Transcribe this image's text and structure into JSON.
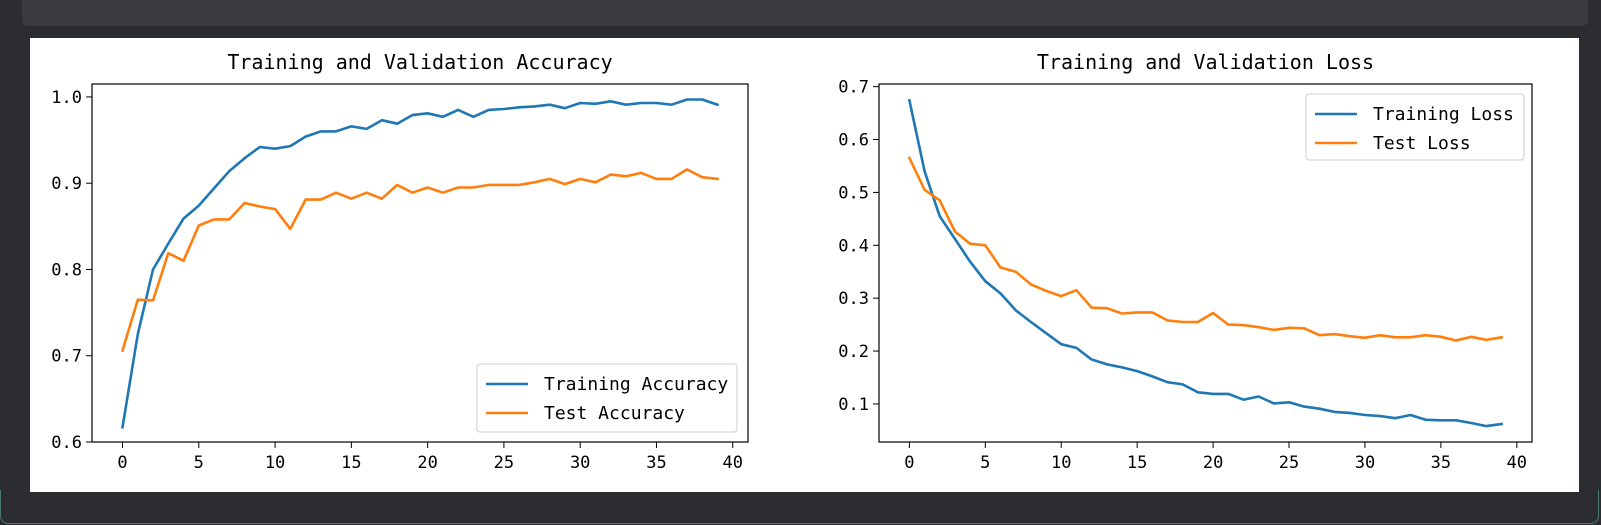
{
  "chart_data": [
    {
      "type": "line",
      "title": "Training and Validation Accuracy",
      "xlabel": "",
      "ylabel": "",
      "xlim": [
        -2,
        41
      ],
      "ylim": [
        0.6,
        1.015
      ],
      "xticks": [
        0,
        5,
        10,
        15,
        20,
        25,
        30,
        35,
        40
      ],
      "yticks": [
        0.6,
        0.7,
        0.8,
        0.9,
        1.0
      ],
      "ytick_labels": [
        "0.6",
        "0.7",
        "0.8",
        "0.9",
        "1.0"
      ],
      "legend_position": "lower right",
      "grid": false,
      "x": [
        0,
        1,
        2,
        3,
        4,
        5,
        6,
        7,
        8,
        9,
        10,
        11,
        12,
        13,
        14,
        15,
        16,
        17,
        18,
        19,
        20,
        21,
        22,
        23,
        24,
        25,
        26,
        27,
        28,
        29,
        30,
        31,
        32,
        33,
        34,
        35,
        36,
        37,
        38,
        39
      ],
      "series": [
        {
          "name": "Training Accuracy",
          "color": "#1f77b4",
          "values": [
            0.617,
            0.725,
            0.8,
            0.83,
            0.859,
            0.874,
            0.894,
            0.914,
            0.929,
            0.942,
            0.94,
            0.943,
            0.954,
            0.96,
            0.96,
            0.966,
            0.963,
            0.973,
            0.969,
            0.979,
            0.981,
            0.977,
            0.985,
            0.977,
            0.985,
            0.986,
            0.988,
            0.989,
            0.991,
            0.987,
            0.993,
            0.992,
            0.995,
            0.991,
            0.993,
            0.993,
            0.991,
            0.997,
            0.997,
            0.991
          ]
        },
        {
          "name": "Test Accuracy",
          "color": "#ff7f0e",
          "values": [
            0.706,
            0.765,
            0.764,
            0.819,
            0.81,
            0.851,
            0.858,
            0.858,
            0.877,
            0.873,
            0.87,
            0.847,
            0.881,
            0.881,
            0.889,
            0.882,
            0.889,
            0.882,
            0.898,
            0.889,
            0.895,
            0.889,
            0.895,
            0.895,
            0.898,
            0.898,
            0.898,
            0.901,
            0.905,
            0.899,
            0.905,
            0.901,
            0.91,
            0.908,
            0.912,
            0.905,
            0.905,
            0.916,
            0.907,
            0.905
          ]
        }
      ]
    },
    {
      "type": "line",
      "title": "Training and Validation Loss",
      "xlabel": "",
      "ylabel": "",
      "xlim": [
        -2,
        41
      ],
      "ylim": [
        0.028,
        0.705
      ],
      "xticks": [
        0,
        5,
        10,
        15,
        20,
        25,
        30,
        35,
        40
      ],
      "yticks": [
        0.1,
        0.2,
        0.3,
        0.4,
        0.5,
        0.6,
        0.7
      ],
      "ytick_labels": [
        "0.1",
        "0.2",
        "0.3",
        "0.4",
        "0.5",
        "0.6",
        "0.7"
      ],
      "legend_position": "upper right",
      "grid": false,
      "x": [
        0,
        1,
        2,
        3,
        4,
        5,
        6,
        7,
        8,
        9,
        10,
        11,
        12,
        13,
        14,
        15,
        16,
        17,
        18,
        19,
        20,
        21,
        22,
        23,
        24,
        25,
        26,
        27,
        28,
        29,
        30,
        31,
        32,
        33,
        34,
        35,
        36,
        37,
        38,
        39
      ],
      "series": [
        {
          "name": "Training Loss",
          "color": "#1f77b4",
          "values": [
            0.674,
            0.54,
            0.455,
            0.412,
            0.369,
            0.332,
            0.309,
            0.277,
            0.255,
            0.234,
            0.213,
            0.206,
            0.184,
            0.175,
            0.169,
            0.162,
            0.152,
            0.141,
            0.137,
            0.122,
            0.119,
            0.119,
            0.108,
            0.114,
            0.101,
            0.103,
            0.095,
            0.091,
            0.085,
            0.083,
            0.079,
            0.077,
            0.073,
            0.079,
            0.07,
            0.069,
            0.069,
            0.064,
            0.058,
            0.062
          ]
        },
        {
          "name": "Test Loss",
          "color": "#ff7f0e",
          "values": [
            0.565,
            0.505,
            0.485,
            0.426,
            0.403,
            0.4,
            0.358,
            0.35,
            0.326,
            0.314,
            0.304,
            0.315,
            0.282,
            0.281,
            0.271,
            0.273,
            0.273,
            0.258,
            0.255,
            0.255,
            0.272,
            0.25,
            0.249,
            0.245,
            0.24,
            0.244,
            0.243,
            0.23,
            0.232,
            0.228,
            0.225,
            0.23,
            0.226,
            0.226,
            0.23,
            0.227,
            0.22,
            0.227,
            0.221,
            0.226
          ]
        }
      ]
    }
  ]
}
